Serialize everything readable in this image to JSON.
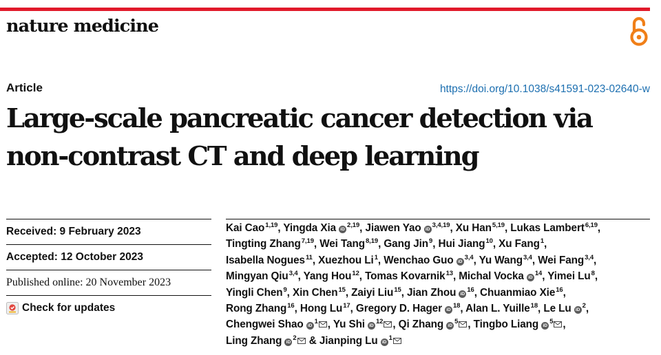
{
  "header": {
    "journal": "nature medicine",
    "accent_color": "#e11a2b",
    "open_access_icon": "open-access-icon",
    "open_access_color": "#f07f18"
  },
  "article": {
    "type": "Article",
    "doi": "https://doi.org/10.1038/s41591-023-02640-w",
    "title_lines": [
      "Large-scale pancreatic cancer detection via",
      "non-contrast CT and deep learning"
    ]
  },
  "dates": {
    "received": "Received: 9 February 2023",
    "accepted": "Accepted: 12 October 2023",
    "published": "Published online: 20 November 2023",
    "check_updates": "Check for updates"
  },
  "authors": [
    {
      "name": "Kai Cao",
      "aff": "1,19",
      "orcid": false,
      "mail": false
    },
    {
      "name": "Yingda Xia",
      "aff": "2,19",
      "orcid": true,
      "mail": false
    },
    {
      "name": "Jiawen Yao",
      "aff": "3,4,19",
      "orcid": true,
      "mail": false
    },
    {
      "name": "Xu Han",
      "aff": "5,19",
      "orcid": false,
      "mail": false
    },
    {
      "name": "Lukas Lambert",
      "aff": "6,19",
      "orcid": false,
      "mail": false
    },
    {
      "name": "Tingting Zhang",
      "aff": "7,19",
      "orcid": false,
      "mail": false
    },
    {
      "name": "Wei Tang",
      "aff": "8,19",
      "orcid": false,
      "mail": false
    },
    {
      "name": "Gang Jin",
      "aff": "9",
      "orcid": false,
      "mail": false
    },
    {
      "name": "Hui Jiang",
      "aff": "10",
      "orcid": false,
      "mail": false
    },
    {
      "name": "Xu Fang",
      "aff": "1",
      "orcid": false,
      "mail": false
    },
    {
      "name": "Isabella Nogues",
      "aff": "11",
      "orcid": false,
      "mail": false
    },
    {
      "name": "Xuezhou Li",
      "aff": "1",
      "orcid": false,
      "mail": false
    },
    {
      "name": "Wenchao Guo",
      "aff": "3,4",
      "orcid": true,
      "mail": false
    },
    {
      "name": "Yu Wang",
      "aff": "3,4",
      "orcid": false,
      "mail": false
    },
    {
      "name": "Wei Fang",
      "aff": "3,4",
      "orcid": false,
      "mail": false
    },
    {
      "name": "Mingyan Qiu",
      "aff": "3,4",
      "orcid": false,
      "mail": false
    },
    {
      "name": "Yang Hou",
      "aff": "12",
      "orcid": false,
      "mail": false
    },
    {
      "name": "Tomas Kovarnik",
      "aff": "13",
      "orcid": false,
      "mail": false
    },
    {
      "name": "Michal Vocka",
      "aff": "14",
      "orcid": true,
      "mail": false
    },
    {
      "name": "Yimei Lu",
      "aff": "8",
      "orcid": false,
      "mail": false
    },
    {
      "name": "Yingli Chen",
      "aff": "9",
      "orcid": false,
      "mail": false
    },
    {
      "name": "Xin Chen",
      "aff": "15",
      "orcid": false,
      "mail": false
    },
    {
      "name": "Zaiyi Liu",
      "aff": "15",
      "orcid": false,
      "mail": false
    },
    {
      "name": "Jian Zhou",
      "aff": "16",
      "orcid": true,
      "mail": false
    },
    {
      "name": "Chuanmiao Xie",
      "aff": "16",
      "orcid": false,
      "mail": false
    },
    {
      "name": "Rong Zhang",
      "aff": "16",
      "orcid": false,
      "mail": false
    },
    {
      "name": "Hong Lu",
      "aff": "17",
      "orcid": false,
      "mail": false
    },
    {
      "name": "Gregory D. Hager",
      "aff": "18",
      "orcid": true,
      "mail": false
    },
    {
      "name": "Alan L. Yuille",
      "aff": "18",
      "orcid": false,
      "mail": false
    },
    {
      "name": "Le Lu",
      "aff": "2",
      "orcid": true,
      "mail": false
    },
    {
      "name": "Chengwei Shao",
      "aff": "1",
      "orcid": true,
      "mail": true
    },
    {
      "name": "Yu Shi",
      "aff": "12",
      "orcid": true,
      "mail": true
    },
    {
      "name": "Qi Zhang",
      "aff": "5",
      "orcid": true,
      "mail": true
    },
    {
      "name": "Tingbo Liang",
      "aff": "5",
      "orcid": true,
      "mail": true
    },
    {
      "name": "Ling Zhang",
      "aff": "2",
      "orcid": true,
      "mail": true
    },
    {
      "name": "Jianping Lu",
      "aff": "1",
      "orcid": true,
      "mail": true
    }
  ],
  "author_lines": [
    [
      0,
      4
    ],
    [
      5,
      9
    ],
    [
      10,
      14
    ],
    [
      15,
      19
    ],
    [
      20,
      24
    ],
    [
      25,
      29
    ],
    [
      30,
      33
    ],
    [
      34,
      35
    ]
  ],
  "final_separator": "& ",
  "orcid_glyph": "iD"
}
